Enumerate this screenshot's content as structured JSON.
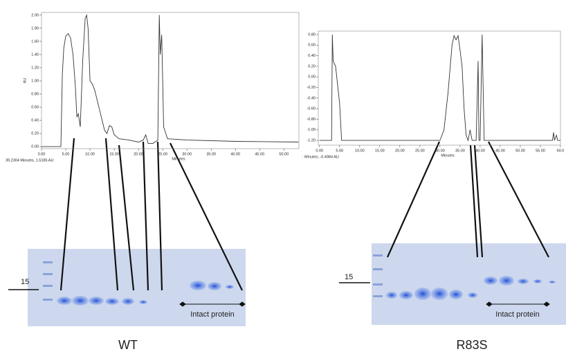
{
  "chart_data": [
    {
      "type": "line",
      "y_label": "AU",
      "x_label": "Minutes",
      "status": "39.2304 Minutes, 1.5185 AU",
      "x": [
        0,
        4,
        4.3,
        4.6,
        5,
        5.5,
        6,
        6.5,
        7,
        7.3,
        7.6,
        8,
        8.5,
        9,
        9.3,
        9.6,
        10,
        10.5,
        11,
        12,
        13,
        13.5,
        14,
        14.5,
        15,
        16,
        18,
        20,
        21,
        21.5,
        22,
        23,
        24,
        24.3,
        24.5,
        24.8,
        25.2,
        26,
        30,
        40,
        53
      ],
      "series": [
        {
          "color": "#333333",
          "values": [
            0,
            0,
            1.1,
            1.5,
            1.68,
            1.72,
            1.65,
            1.4,
            0.9,
            0.45,
            0.5,
            0.3,
            1.3,
            1.95,
            2.0,
            1.8,
            1.0,
            0.95,
            0.85,
            0.55,
            0.25,
            0.2,
            0.32,
            0.3,
            0.18,
            0.12,
            0.1,
            0.07,
            0.1,
            0.18,
            0.05,
            0.05,
            0.1,
            2.0,
            1.4,
            1.7,
            0.3,
            0.12,
            0.1,
            0.08,
            0.07
          ]
        }
      ],
      "xlim": [
        0,
        53.1
      ],
      "ylim": [
        -0.03,
        2.04
      ],
      "xticks": [
        {
          "value": 0,
          "label": "0.00"
        },
        {
          "value": 5,
          "label": "5.00"
        },
        {
          "value": 10,
          "label": "10.00"
        },
        {
          "value": 15,
          "label": "15.00"
        },
        {
          "value": 20,
          "label": "20.00"
        },
        {
          "value": 25,
          "label": "25.00"
        },
        {
          "value": 30,
          "label": "30.00"
        },
        {
          "value": 35,
          "label": "35.00"
        },
        {
          "value": 40,
          "label": "40.00"
        },
        {
          "value": 45,
          "label": "45.00"
        },
        {
          "value": 50,
          "label": "50.00"
        }
      ],
      "yticks": [
        {
          "value": 0,
          "label": "0.00"
        },
        {
          "value": 0.2,
          "label": "0.20"
        },
        {
          "value": 0.4,
          "label": "0.40"
        },
        {
          "value": 0.6,
          "label": "0.60"
        },
        {
          "value": 0.8,
          "label": "0.80"
        },
        {
          "value": 1,
          "label": "1.00"
        },
        {
          "value": 1.2,
          "label": "1.20"
        },
        {
          "value": 1.4,
          "label": "1.40"
        },
        {
          "value": 1.6,
          "label": "1.60"
        },
        {
          "value": 1.8,
          "label": "1.80"
        },
        {
          "value": 2,
          "label": "2.00"
        }
      ]
    },
    {
      "type": "line",
      "x_label": "Minutes",
      "status": ": Minutes, -0.4984 AU",
      "x": [
        0,
        3,
        3.2,
        3.4,
        4,
        5,
        5.5,
        30,
        31,
        32,
        33,
        33.5,
        34,
        34.5,
        35,
        35.5,
        36,
        36.5,
        37,
        37.5,
        38,
        39,
        39.5,
        39.7,
        40,
        40.5,
        41,
        58,
        58.3,
        58.5,
        59,
        59.3,
        60
      ],
      "series": [
        {
          "color": "#333333",
          "values": [
            -1.2,
            -1.2,
            0.8,
            0.3,
            0.2,
            -0.5,
            -1.2,
            -1.2,
            -1.0,
            -0.3,
            0.6,
            0.78,
            0.7,
            0.78,
            0.5,
            0.2,
            -0.6,
            -1.1,
            -1.2,
            -1.0,
            -1.2,
            -1.2,
            0.3,
            -1.2,
            -1.2,
            0.8,
            -1.2,
            -1.2,
            -1.05,
            -1.2,
            -1.1,
            -1.2,
            -1.2
          ]
        }
      ],
      "xlim": [
        -0.3,
        60
      ],
      "ylim": [
        -1.29,
        0.865
      ],
      "xticks": [
        {
          "value": 0,
          "label": "0.00"
        },
        {
          "value": 5,
          "label": "5.00"
        },
        {
          "value": 10,
          "label": "10.00"
        },
        {
          "value": 15,
          "label": "15.00"
        },
        {
          "value": 20,
          "label": "20.00"
        },
        {
          "value": 25,
          "label": "25.00"
        },
        {
          "value": 30,
          "label": "30.00"
        },
        {
          "value": 35,
          "label": "35.00"
        },
        {
          "value": 40,
          "label": "40.00"
        },
        {
          "value": 45,
          "label": "45.00"
        },
        {
          "value": 50,
          "label": "50.00"
        },
        {
          "value": 55,
          "label": "55.00"
        },
        {
          "value": 60,
          "label": "60.0"
        }
      ],
      "yticks": [
        {
          "value": -1.2,
          "label": "-1.20"
        },
        {
          "value": -1,
          "label": "-1.00"
        },
        {
          "value": -0.8,
          "label": "-0.80"
        },
        {
          "value": -0.6,
          "label": "-0.60"
        },
        {
          "value": -0.4,
          "label": "-0.40"
        },
        {
          "value": -0.2,
          "label": "-0.20"
        },
        {
          "value": 0,
          "label": "0.00"
        },
        {
          "value": 0.2,
          "label": "0.20"
        },
        {
          "value": 0.4,
          "label": "0.40"
        },
        {
          "value": 0.6,
          "label": "0.60"
        },
        {
          "value": 0.8,
          "label": "0.80"
        }
      ]
    }
  ],
  "gels": [
    {
      "marker": "15",
      "bracket_label": "Intact protein",
      "name": "WT"
    },
    {
      "marker": "15",
      "bracket_label": "Intact protein",
      "name": "R83S"
    }
  ]
}
